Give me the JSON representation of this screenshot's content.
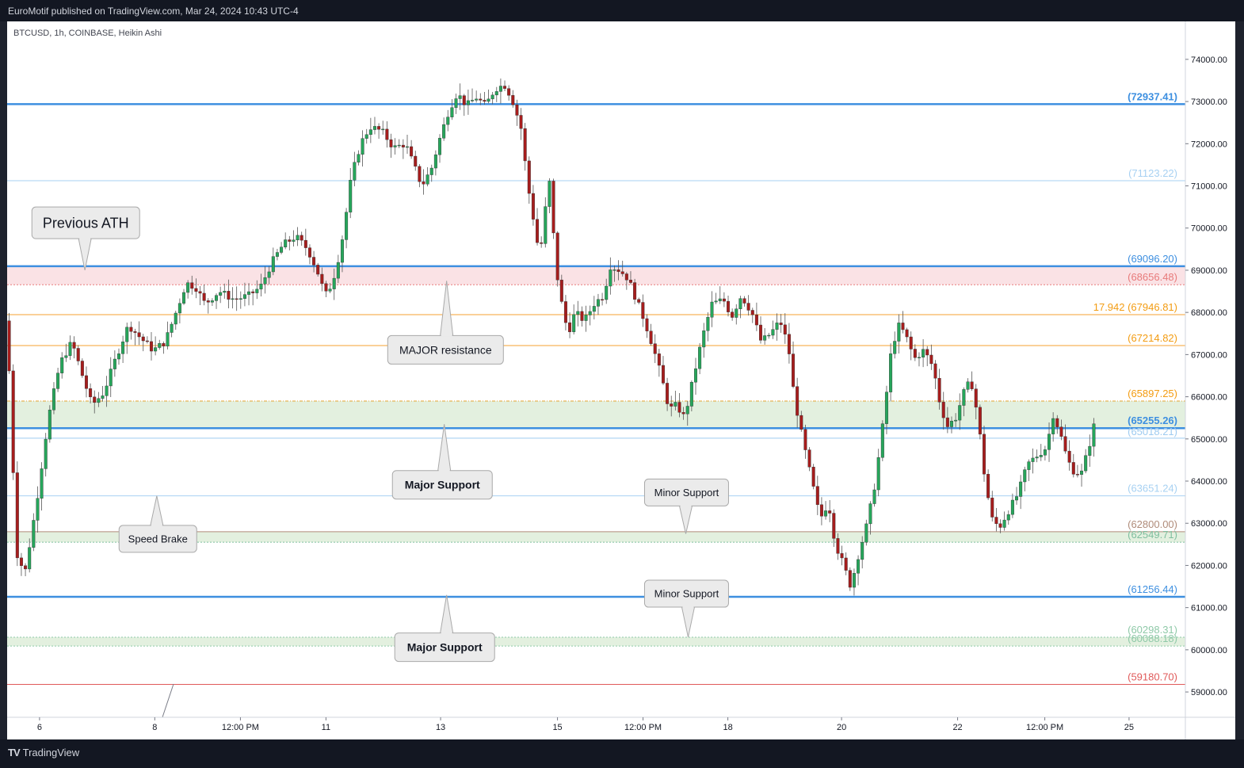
{
  "header": {
    "publish_text": "EuroMotif published on TradingView.com, Mar 24, 2024 10:43 UTC-4"
  },
  "footer": {
    "logo_mark": "TV",
    "logo_text": "TradingView"
  },
  "chart_data": {
    "type": "candlestick",
    "symbol_label": "BTCUSD, 1h, COINBASE, Heikin Ashi",
    "ylim": [
      58400,
      74900
    ],
    "y_ticks": [
      "74000.00",
      "73000.00",
      "72000.00",
      "71000.00",
      "70000.00",
      "69000.00",
      "68000.00",
      "67000.00",
      "66000.00",
      "65000.00",
      "64000.00",
      "63000.00",
      "62000.00",
      "61000.00",
      "60000.00",
      "59000.00"
    ],
    "x_ticks": [
      {
        "label": "6",
        "pos": 0.0275
      },
      {
        "label": "8",
        "pos": 0.1253
      },
      {
        "label": "12:00 PM",
        "pos": 0.198
      },
      {
        "label": "11",
        "pos": 0.2706
      },
      {
        "label": "13",
        "pos": 0.3679
      },
      {
        "label": "15",
        "pos": 0.4671
      },
      {
        "label": "12:00 PM",
        "pos": 0.5397
      },
      {
        "label": "18",
        "pos": 0.6117
      },
      {
        "label": "20",
        "pos": 0.7082
      },
      {
        "label": "22",
        "pos": 0.8067
      },
      {
        "label": "12:00 PM",
        "pos": 0.8807
      },
      {
        "label": "25",
        "pos": 0.9522
      }
    ],
    "colors": {
      "up": "#26a65b",
      "down": "#a61d1d",
      "axis": "#787b86"
    },
    "price_path": [
      [
        0.0,
        67800
      ],
      [
        0.008,
        62300
      ],
      [
        0.015,
        61800
      ],
      [
        0.025,
        63500
      ],
      [
        0.035,
        65500
      ],
      [
        0.045,
        66800
      ],
      [
        0.055,
        67300
      ],
      [
        0.065,
        66400
      ],
      [
        0.072,
        65800
      ],
      [
        0.082,
        66100
      ],
      [
        0.092,
        66900
      ],
      [
        0.103,
        67700
      ],
      [
        0.113,
        67400
      ],
      [
        0.124,
        67100
      ],
      [
        0.134,
        67300
      ],
      [
        0.142,
        67900
      ],
      [
        0.152,
        68700
      ],
      [
        0.16,
        68600
      ],
      [
        0.168,
        68200
      ],
      [
        0.18,
        68500
      ],
      [
        0.193,
        68300
      ],
      [
        0.205,
        68400
      ],
      [
        0.215,
        68600
      ],
      [
        0.225,
        69200
      ],
      [
        0.234,
        69600
      ],
      [
        0.245,
        69800
      ],
      [
        0.255,
        69500
      ],
      [
        0.263,
        69000
      ],
      [
        0.27,
        68400
      ],
      [
        0.276,
        68700
      ],
      [
        0.283,
        69500
      ],
      [
        0.287,
        70200
      ],
      [
        0.292,
        71200
      ],
      [
        0.3,
        72000
      ],
      [
        0.308,
        72400
      ],
      [
        0.318,
        72300
      ],
      [
        0.328,
        71900
      ],
      [
        0.338,
        72000
      ],
      [
        0.345,
        71500
      ],
      [
        0.352,
        71000
      ],
      [
        0.36,
        71400
      ],
      [
        0.368,
        72200
      ],
      [
        0.375,
        72800
      ],
      [
        0.382,
        73200
      ],
      [
        0.39,
        72900
      ],
      [
        0.398,
        73100
      ],
      [
        0.406,
        72900
      ],
      [
        0.414,
        73300
      ],
      [
        0.422,
        73400
      ],
      [
        0.428,
        73100
      ],
      [
        0.436,
        72400
      ],
      [
        0.442,
        71000
      ],
      [
        0.448,
        70000
      ],
      [
        0.452,
        69300
      ],
      [
        0.457,
        70500
      ],
      [
        0.461,
        71200
      ],
      [
        0.465,
        69200
      ],
      [
        0.47,
        68300
      ],
      [
        0.476,
        67500
      ],
      [
        0.482,
        68000
      ],
      [
        0.49,
        67800
      ],
      [
        0.498,
        68200
      ],
      [
        0.506,
        68400
      ],
      [
        0.512,
        69100
      ],
      [
        0.52,
        69000
      ],
      [
        0.527,
        68800
      ],
      [
        0.534,
        68300
      ],
      [
        0.541,
        67800
      ],
      [
        0.548,
        67200
      ],
      [
        0.555,
        66500
      ],
      [
        0.562,
        65700
      ],
      [
        0.568,
        65800
      ],
      [
        0.575,
        65500
      ],
      [
        0.582,
        66400
      ],
      [
        0.59,
        67400
      ],
      [
        0.598,
        68200
      ],
      [
        0.608,
        68300
      ],
      [
        0.615,
        67900
      ],
      [
        0.623,
        68400
      ],
      [
        0.632,
        68000
      ],
      [
        0.64,
        67300
      ],
      [
        0.648,
        67500
      ],
      [
        0.656,
        67800
      ],
      [
        0.663,
        67200
      ],
      [
        0.668,
        66000
      ],
      [
        0.675,
        65000
      ],
      [
        0.683,
        64000
      ],
      [
        0.69,
        63100
      ],
      [
        0.697,
        63500
      ],
      [
        0.703,
        62500
      ],
      [
        0.71,
        62000
      ],
      [
        0.716,
        61500
      ],
      [
        0.722,
        62200
      ],
      [
        0.73,
        63000
      ],
      [
        0.737,
        64000
      ],
      [
        0.744,
        65500
      ],
      [
        0.75,
        67000
      ],
      [
        0.756,
        67700
      ],
      [
        0.762,
        67500
      ],
      [
        0.77,
        66900
      ],
      [
        0.778,
        67100
      ],
      [
        0.786,
        66700
      ],
      [
        0.792,
        65800
      ],
      [
        0.798,
        65300
      ],
      [
        0.805,
        65500
      ],
      [
        0.812,
        66100
      ],
      [
        0.818,
        66400
      ],
      [
        0.824,
        65500
      ],
      [
        0.83,
        64000
      ],
      [
        0.836,
        63100
      ],
      [
        0.842,
        62900
      ],
      [
        0.85,
        63300
      ],
      [
        0.858,
        63700
      ],
      [
        0.866,
        64400
      ],
      [
        0.874,
        64600
      ],
      [
        0.882,
        64800
      ],
      [
        0.888,
        65600
      ],
      [
        0.894,
        65100
      ],
      [
        0.9,
        64500
      ],
      [
        0.906,
        64200
      ],
      [
        0.912,
        64200
      ],
      [
        0.918,
        64800
      ],
      [
        0.924,
        65500
      ]
    ],
    "levels": [
      {
        "price": 72937.41,
        "label": "(72937.41)",
        "color": "#3d8fe0",
        "width": 2.5,
        "bold": true,
        "label_y": 72937.41
      },
      {
        "price": 71123.22,
        "label": "(71123.22)",
        "color": "#a7d1f2",
        "width": 1,
        "bold": false,
        "label_y": 71123.22
      },
      {
        "price": 69096.2,
        "label": "(69096.20)",
        "color": "#3d8fe0",
        "width": 2.5,
        "bold": false,
        "label_y": 69096.2
      },
      {
        "price": 68656.48,
        "label": "(68656.48)",
        "color": "#e87a7a",
        "width": 1,
        "dash": "2,2",
        "bold": false,
        "label_y": 68656.48
      },
      {
        "price": 67946.81,
        "label": "17.942 (67946.81)",
        "color": "#f5a030",
        "width": 1,
        "bold": false,
        "label_y": 67946.81
      },
      {
        "price": 67214.82,
        "label": "(67214.82)",
        "color": "#f5a030",
        "width": 1,
        "bold": false,
        "label_y": 67214.82
      },
      {
        "price": 65897.25,
        "label": "(65897.25)",
        "color": "#e6a430",
        "width": 1,
        "dash": "4,2,1,2",
        "bold": false,
        "label_y": 65897.25
      },
      {
        "price": 65255.26,
        "label": "(65255.26)",
        "color": "#3d8fe0",
        "width": 2.5,
        "bold": true,
        "label_y": 65255.26
      },
      {
        "price": 65018.21,
        "label": "(65018.21)",
        "color": "#9ecbf0",
        "width": 1,
        "bold": false,
        "label_y": 65000
      },
      {
        "price": 63651.24,
        "label": "(63651.24)",
        "color": "#a7d1f2",
        "width": 1,
        "bold": false,
        "label_y": 63651.24
      },
      {
        "price": 62800.0,
        "label": "(62800.00)",
        "color": "#b08c7a",
        "width": 1,
        "bold": false,
        "label_y": 62800.0
      },
      {
        "price": 62549.71,
        "label": "(62549.71)",
        "color": "#7fbf9f",
        "width": 1,
        "dash": "2,2",
        "bold": false,
        "label_y": 62549.71
      },
      {
        "price": 61256.44,
        "label": "(61256.44)",
        "color": "#3d8fe0",
        "width": 2.5,
        "bold": false,
        "label_y": 61256.44
      },
      {
        "price": 60298.31,
        "label": "(60298.31)",
        "color": "#8fc9a8",
        "width": 1,
        "dash": "2,2",
        "bold": false,
        "label_y": 60298.31
      },
      {
        "price": 60088.18,
        "label": "(60088.18)",
        "color": "#8fc9a8",
        "width": 1,
        "dash": "2,2",
        "bold": false,
        "label_y": 60088.18
      },
      {
        "price": 59180.7,
        "label": "(59180.70)",
        "color": "#e05a5a",
        "width": 1,
        "bold": false,
        "label_y": 59180.7
      }
    ],
    "zones": [
      {
        "top": 69096.2,
        "bottom": 68656.48,
        "color": "#f8d6da",
        "opacity": 0.7
      },
      {
        "top": 65897.25,
        "bottom": 65255.26,
        "color": "#d7ead2",
        "opacity": 0.7
      },
      {
        "top": 62800.0,
        "bottom": 62549.71,
        "color": "#d7ead2",
        "opacity": 0.7
      },
      {
        "top": 60298.31,
        "bottom": 60088.18,
        "color": "#d7ead2",
        "opacity": 0.7
      }
    ],
    "callouts": [
      {
        "text": "Previous ATH",
        "size": 18,
        "bold": false,
        "box_x": 0.021,
        "box_y": 70500,
        "box_w": 136,
        "box_h": 40,
        "tip_x": 0.066,
        "tip_y": 69000,
        "tip_dir": "down"
      },
      {
        "text": "MAJOR resistance",
        "size": 14,
        "bold": false,
        "box_x": 0.323,
        "box_y": 67450,
        "box_w": 146,
        "box_h": 36,
        "tip_x": 0.373,
        "tip_y": 68750,
        "tip_dir": "up"
      },
      {
        "text": "Major Support",
        "size": 14,
        "bold": true,
        "box_x": 0.327,
        "box_y": 64250,
        "box_w": 126,
        "box_h": 36,
        "tip_x": 0.371,
        "tip_y": 65350,
        "tip_dir": "up"
      },
      {
        "text": "Minor Support",
        "size": 13,
        "bold": false,
        "box_x": 0.541,
        "box_y": 64050,
        "box_w": 106,
        "box_h": 34,
        "tip_x": 0.576,
        "tip_y": 62750,
        "tip_dir": "down"
      },
      {
        "text": "Speed Brake",
        "size": 13,
        "bold": false,
        "box_x": 0.095,
        "box_y": 62950,
        "box_w": 98,
        "box_h": 34,
        "tip_x": 0.127,
        "tip_y": 63650,
        "tip_dir": "up"
      },
      {
        "text": "Minor Support",
        "size": 13,
        "bold": false,
        "box_x": 0.541,
        "box_y": 61650,
        "box_w": 106,
        "box_h": 34,
        "tip_x": 0.578,
        "tip_y": 60300,
        "tip_dir": "down"
      },
      {
        "text": "Major Support",
        "size": 14,
        "bold": true,
        "box_x": 0.329,
        "box_y": 60400,
        "box_w": 126,
        "box_h": 36,
        "tip_x": 0.373,
        "tip_y": 61300,
        "tip_dir": "up"
      }
    ]
  }
}
